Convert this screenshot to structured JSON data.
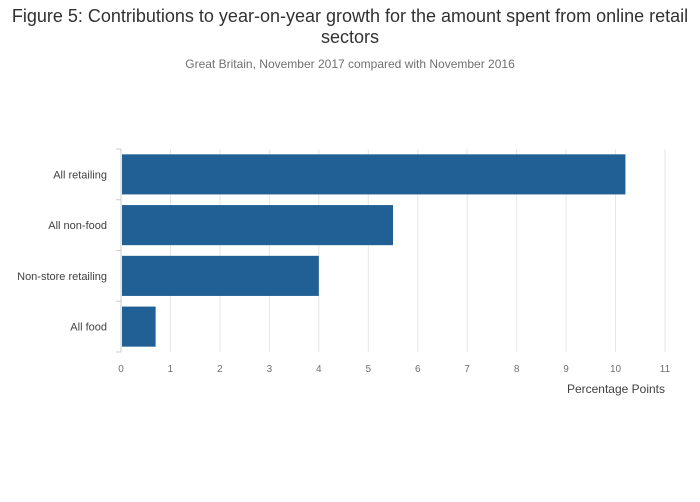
{
  "title": "Figure 5: Contributions to year-on-year growth for the amount spent from online retail sectors",
  "subtitle": "Great Britain, November 2017 compared with November 2016",
  "chart_data": {
    "type": "bar",
    "orientation": "horizontal",
    "title": "Figure 5: Contributions to year-on-year growth for the amount spent from online retail sectors",
    "subtitle": "Great Britain, November 2017 compared with November 2016",
    "categories": [
      "All retailing",
      "All non-food",
      "Non-store retailing",
      "All food"
    ],
    "values": [
      10.2,
      5.5,
      4.0,
      0.7
    ],
    "xlabel": "Percentage Points",
    "ylabel": "",
    "xlim": [
      0,
      11
    ],
    "xticks": [
      "0",
      "1",
      "2",
      "3",
      "4",
      "5",
      "6",
      "7",
      "8",
      "9",
      "10",
      "11"
    ],
    "grid": true,
    "bar_color": "#206095",
    "grid_color": "#e6e6e6"
  }
}
